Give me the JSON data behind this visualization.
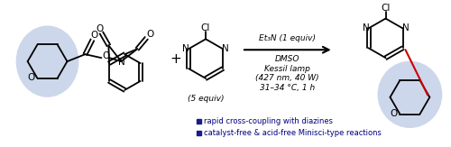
{
  "figsize": [
    5.0,
    1.63
  ],
  "dpi": 100,
  "bg_color": "#ffffff",
  "highlight_color": "#c5d0e8",
  "arrow_color": "#000000",
  "bond_color": "#000000",
  "text_color": "#000080",
  "bullet_color": "#1a1a8c",
  "conditions_line1": "Et₃N (1 equiv)",
  "conditions_line2": "DMSO",
  "conditions_line3": "Kessil lamp",
  "conditions_line4": "(427 nm, 40 W)",
  "conditions_line5": "31–34 °C, 1 h",
  "label1": "(5 equiv)",
  "bullet1": "rapid cross-coupling with diazines",
  "bullet2": "catalyst-free & acid-free Minisci-type reactions",
  "new_bond_color": "#cc0000"
}
